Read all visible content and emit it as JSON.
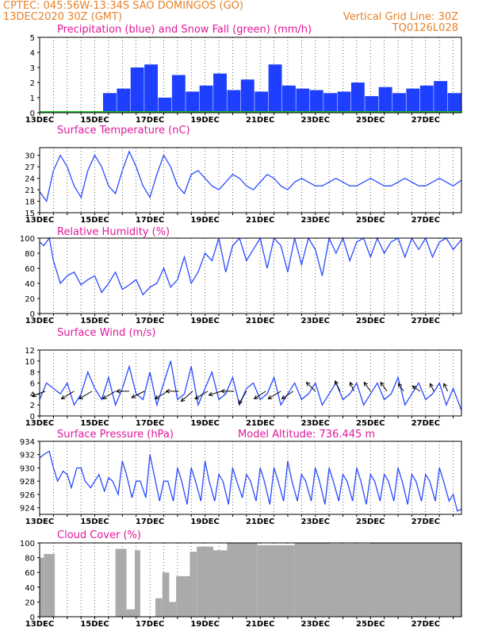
{
  "header": {
    "line1_left": "CPTEC:  045:56W-13:34S  SAO DOMINGOS (GO)",
    "line2_left": "13DEC2020 30Z (GMT)",
    "line2_right": "Vertical Grid Line: 30Z",
    "line3_right": "TQ0126L028"
  },
  "x_tick_labels": [
    "13DEC",
    "15DEC",
    "17DEC",
    "19DEC",
    "21DEC",
    "23DEC",
    "25DEC",
    "27DEC"
  ],
  "chart_data": [
    {
      "id": "precip",
      "type": "bar",
      "title": "Precipitation (blue) and Snow Fall (green) (mm/h)",
      "ylim": [
        0,
        5
      ],
      "yticks": [
        0,
        1,
        2,
        3,
        4,
        5
      ],
      "series": [
        {
          "name": "Precipitation",
          "color": "#1f3fff",
          "segments": [
            [
              0,
              4.6,
              0
            ],
            [
              4.6,
              5.6,
              1.3
            ],
            [
              5.6,
              6.6,
              1.6
            ],
            [
              6.6,
              7.6,
              3.0
            ],
            [
              7.6,
              8.6,
              3.2
            ],
            [
              8.6,
              9.6,
              1.0
            ],
            [
              9.6,
              10.6,
              2.5
            ],
            [
              10.6,
              11.6,
              1.4
            ],
            [
              11.6,
              12.6,
              1.8
            ],
            [
              12.6,
              13.6,
              2.6
            ],
            [
              13.6,
              14.6,
              1.5
            ],
            [
              14.6,
              15.6,
              2.2
            ],
            [
              15.6,
              16.6,
              1.4
            ],
            [
              16.6,
              17.6,
              3.2
            ],
            [
              17.6,
              18.6,
              1.8
            ],
            [
              18.6,
              19.6,
              1.6
            ],
            [
              19.6,
              20.6,
              1.5
            ],
            [
              20.6,
              21.6,
              1.3
            ],
            [
              21.6,
              22.6,
              1.4
            ],
            [
              22.6,
              23.6,
              2.0
            ],
            [
              23.6,
              24.6,
              1.1
            ],
            [
              24.6,
              25.6,
              1.7
            ],
            [
              25.6,
              26.6,
              1.3
            ],
            [
              26.6,
              27.6,
              1.6
            ],
            [
              27.6,
              28.6,
              1.8
            ],
            [
              28.6,
              29.6,
              2.1
            ],
            [
              29.6,
              30.6,
              1.3
            ]
          ]
        },
        {
          "name": "Snow Fall",
          "color": "#20c020",
          "segments": [
            [
              0,
              30.6,
              0
            ]
          ]
        }
      ]
    },
    {
      "id": "temp",
      "type": "line",
      "title": "Surface Temperature (nC)",
      "ylim": [
        15,
        32
      ],
      "yticks": [
        15,
        18,
        21,
        24,
        27,
        30
      ],
      "color": "#2a4bff",
      "x": [
        0,
        0.5,
        1,
        1.5,
        2,
        2.5,
        3,
        3.5,
        4,
        4.5,
        5,
        5.5,
        6,
        6.5,
        7,
        7.5,
        8,
        8.5,
        9,
        9.5,
        10,
        10.5,
        11,
        11.5,
        12,
        12.5,
        13,
        13.5,
        14,
        14.5,
        15,
        15.5,
        16,
        16.5,
        17,
        17.5,
        18,
        18.5,
        19,
        19.5,
        20,
        20.5,
        21,
        21.5,
        22,
        22.5,
        23,
        23.5,
        24,
        24.5,
        25,
        25.5,
        26,
        26.5,
        27,
        27.5,
        28,
        28.5,
        29,
        29.5,
        30,
        30.6
      ],
      "values": [
        20.5,
        18,
        26,
        30,
        27,
        22,
        19,
        26,
        30,
        27,
        22,
        20,
        26,
        31,
        27,
        22,
        19,
        25,
        30,
        27,
        22,
        20,
        25,
        26,
        24,
        22,
        21,
        23,
        25,
        24,
        22,
        21,
        23,
        25,
        24,
        22,
        21,
        23,
        24,
        23,
        22,
        22,
        23,
        24,
        23,
        22,
        22,
        23,
        24,
        23,
        22,
        22,
        23,
        24,
        23,
        22,
        22,
        23,
        24,
        23,
        22,
        23.5
      ]
    },
    {
      "id": "rh",
      "type": "line",
      "title": "Relative Humidity (%)",
      "ylim": [
        0,
        100
      ],
      "yticks": [
        0,
        20,
        40,
        60,
        80,
        100
      ],
      "color": "#2a4bff",
      "x": [
        0,
        0.3,
        0.7,
        1,
        1.5,
        2,
        2.5,
        3,
        3.5,
        4,
        4.5,
        5,
        5.5,
        6,
        6.5,
        7,
        7.5,
        8,
        8.5,
        9,
        9.5,
        10,
        10.5,
        11,
        11.5,
        12,
        12.5,
        13,
        13.5,
        14,
        14.5,
        15,
        15.5,
        16,
        16.5,
        17,
        17.5,
        18,
        18.5,
        19,
        19.5,
        20,
        20.5,
        21,
        21.5,
        22,
        22.5,
        23,
        23.5,
        24,
        24.5,
        25,
        25.5,
        26,
        26.5,
        27,
        27.5,
        28,
        28.5,
        29,
        29.5,
        30,
        30.6
      ],
      "values": [
        95,
        90,
        100,
        70,
        40,
        50,
        55,
        38,
        45,
        50,
        28,
        40,
        55,
        32,
        38,
        45,
        25,
        35,
        40,
        60,
        35,
        45,
        75,
        40,
        55,
        80,
        70,
        100,
        55,
        90,
        100,
        70,
        85,
        100,
        60,
        100,
        90,
        55,
        100,
        65,
        100,
        85,
        50,
        100,
        80,
        100,
        70,
        95,
        100,
        75,
        100,
        80,
        95,
        100,
        75,
        100,
        85,
        100,
        75,
        95,
        100,
        85,
        98
      ]
    },
    {
      "id": "wind",
      "type": "line",
      "title": "Surface Wind (m/s)",
      "ylim": [
        0,
        12
      ],
      "yticks": [
        0,
        2,
        4,
        6,
        8,
        10,
        12
      ],
      "color": "#2a4bff",
      "x": [
        0,
        0.5,
        1,
        1.5,
        2,
        2.5,
        3,
        3.5,
        4,
        4.5,
        5,
        5.5,
        6,
        6.5,
        7,
        7.5,
        8,
        8.5,
        9,
        9.5,
        10,
        10.5,
        11,
        11.5,
        12,
        12.5,
        13,
        13.5,
        14,
        14.5,
        15,
        15.5,
        16,
        16.5,
        17,
        17.5,
        18,
        18.5,
        19,
        19.5,
        20,
        20.5,
        21,
        21.5,
        22,
        22.5,
        23,
        23.5,
        24,
        24.5,
        25,
        25.5,
        26,
        26.5,
        27,
        27.5,
        28,
        28.5,
        29,
        29.5,
        30,
        30.6
      ],
      "values": [
        3,
        6,
        5,
        4,
        6,
        2,
        4,
        8,
        5,
        3,
        7,
        2,
        5,
        9,
        4,
        3,
        8,
        2,
        6,
        10,
        3,
        4,
        9,
        2,
        5,
        8,
        3,
        4,
        7,
        2,
        5,
        6,
        3,
        4,
        7,
        2,
        4,
        6,
        3,
        4,
        6,
        2,
        4,
        6,
        3,
        4,
        6,
        2,
        4,
        6,
        3,
        4,
        7,
        2,
        4,
        6,
        3,
        4,
        6,
        2,
        5,
        1
      ],
      "arrows": [
        {
          "x": 0.4,
          "u": -1,
          "v": -0.4
        },
        {
          "x": 2.5,
          "u": -1,
          "v": -0.6
        },
        {
          "x": 3.8,
          "u": -1,
          "v": -0.6
        },
        {
          "x": 5.5,
          "u": -1,
          "v": -0.6
        },
        {
          "x": 6.5,
          "u": -1,
          "v": 0
        },
        {
          "x": 7.6,
          "u": -1,
          "v": -0.5
        },
        {
          "x": 9.3,
          "u": -1,
          "v": -0.6
        },
        {
          "x": 10.1,
          "u": -1,
          "v": 0
        },
        {
          "x": 11.1,
          "u": -0.9,
          "v": -0.8
        },
        {
          "x": 12.2,
          "u": -1,
          "v": -0.6
        },
        {
          "x": 13.2,
          "u": -1,
          "v": -0.3
        },
        {
          "x": 14.1,
          "u": -1,
          "v": 0
        },
        {
          "x": 15.0,
          "u": -0.6,
          "v": -1
        },
        {
          "x": 16.4,
          "u": -0.9,
          "v": -0.6
        },
        {
          "x": 17.5,
          "u": -1,
          "v": -0.6
        },
        {
          "x": 18.4,
          "u": -0.9,
          "v": -0.6
        },
        {
          "x": 20.0,
          "u": -0.7,
          "v": 0.7
        },
        {
          "x": 21.8,
          "u": -0.4,
          "v": 0.8
        },
        {
          "x": 22.8,
          "u": -0.3,
          "v": 0.7
        },
        {
          "x": 24.0,
          "u": -0.5,
          "v": 0.7
        },
        {
          "x": 25.2,
          "u": -0.5,
          "v": 0.7
        },
        {
          "x": 26.4,
          "u": -0.4,
          "v": 0.6
        },
        {
          "x": 27.6,
          "u": -0.6,
          "v": 0.4
        },
        {
          "x": 28.6,
          "u": -0.3,
          "v": 0.6
        },
        {
          "x": 29.6,
          "u": -0.3,
          "v": 0.6
        }
      ]
    },
    {
      "id": "pres",
      "type": "line",
      "title": "Surface Pressure (hPa)",
      "note": "Model Altitude: 736.445  m",
      "ylim": [
        923,
        934
      ],
      "yticks": [
        924,
        926,
        928,
        930,
        932,
        934
      ],
      "color": "#2a4bff",
      "x": [
        0,
        0.3,
        0.7,
        1,
        1.3,
        1.7,
        2,
        2.3,
        2.7,
        3,
        3.3,
        3.7,
        4,
        4.3,
        4.7,
        5,
        5.3,
        5.7,
        6,
        6.3,
        6.7,
        7,
        7.3,
        7.7,
        8,
        8.3,
        8.7,
        9,
        9.3,
        9.7,
        10,
        10.3,
        10.7,
        11,
        11.3,
        11.7,
        12,
        12.3,
        12.7,
        13,
        13.3,
        13.7,
        14,
        14.3,
        14.7,
        15,
        15.3,
        15.7,
        16,
        16.3,
        16.7,
        17,
        17.3,
        17.7,
        18,
        18.3,
        18.7,
        19,
        19.3,
        19.7,
        20,
        20.3,
        20.7,
        21,
        21.3,
        21.7,
        22,
        22.3,
        22.7,
        23,
        23.3,
        23.7,
        24,
        24.3,
        24.7,
        25,
        25.3,
        25.7,
        26,
        26.3,
        26.7,
        27,
        27.3,
        27.7,
        28,
        28.3,
        28.7,
        29,
        29.3,
        29.7,
        30,
        30.3,
        30.6
      ],
      "values": [
        931.5,
        932,
        932.5,
        930,
        928,
        929.5,
        929,
        927,
        930,
        930,
        928,
        927,
        928,
        929,
        926.5,
        928.5,
        928,
        926,
        931,
        929,
        925.5,
        928,
        928,
        925.5,
        932,
        929,
        925,
        928,
        928,
        925,
        930,
        928,
        924.5,
        930,
        928,
        925,
        931,
        928,
        925,
        929,
        928,
        924.5,
        930,
        928,
        925.5,
        929,
        928,
        925,
        930,
        928,
        924.5,
        930,
        928,
        925,
        931,
        928,
        925,
        929,
        928,
        925,
        930,
        928,
        924.5,
        930,
        928,
        925,
        929,
        928,
        925,
        930,
        928,
        924.5,
        929,
        928,
        925,
        929,
        928,
        925,
        930,
        928,
        924.5,
        929,
        928,
        925,
        929,
        928,
        925,
        930,
        928,
        925,
        926,
        923.5,
        923.8
      ]
    },
    {
      "id": "cloud",
      "type": "bar",
      "title": "Cloud Cover (%)",
      "ylim": [
        0,
        100
      ],
      "yticks": [
        0,
        20,
        40,
        60,
        80,
        100
      ],
      "color": "#aaaaaa",
      "segments": [
        [
          0,
          0.3,
          80
        ],
        [
          0.3,
          1.1,
          85
        ],
        [
          1.1,
          1.9,
          0
        ],
        [
          1.9,
          5.5,
          0
        ],
        [
          5.5,
          6.3,
          92
        ],
        [
          6.3,
          6.9,
          10
        ],
        [
          6.9,
          7.3,
          90
        ],
        [
          7.3,
          8.4,
          0
        ],
        [
          8.4,
          8.9,
          25
        ],
        [
          8.9,
          9.4,
          60
        ],
        [
          9.4,
          9.9,
          20
        ],
        [
          9.9,
          10.9,
          55
        ],
        [
          10.9,
          11.4,
          88
        ],
        [
          11.4,
          12.6,
          95
        ],
        [
          12.6,
          13.6,
          90
        ],
        [
          13.6,
          15.8,
          100
        ],
        [
          15.8,
          18.5,
          97
        ],
        [
          18.5,
          21,
          100
        ],
        [
          21,
          24,
          99
        ],
        [
          24,
          27,
          100
        ],
        [
          27,
          30.6,
          100
        ]
      ]
    }
  ]
}
